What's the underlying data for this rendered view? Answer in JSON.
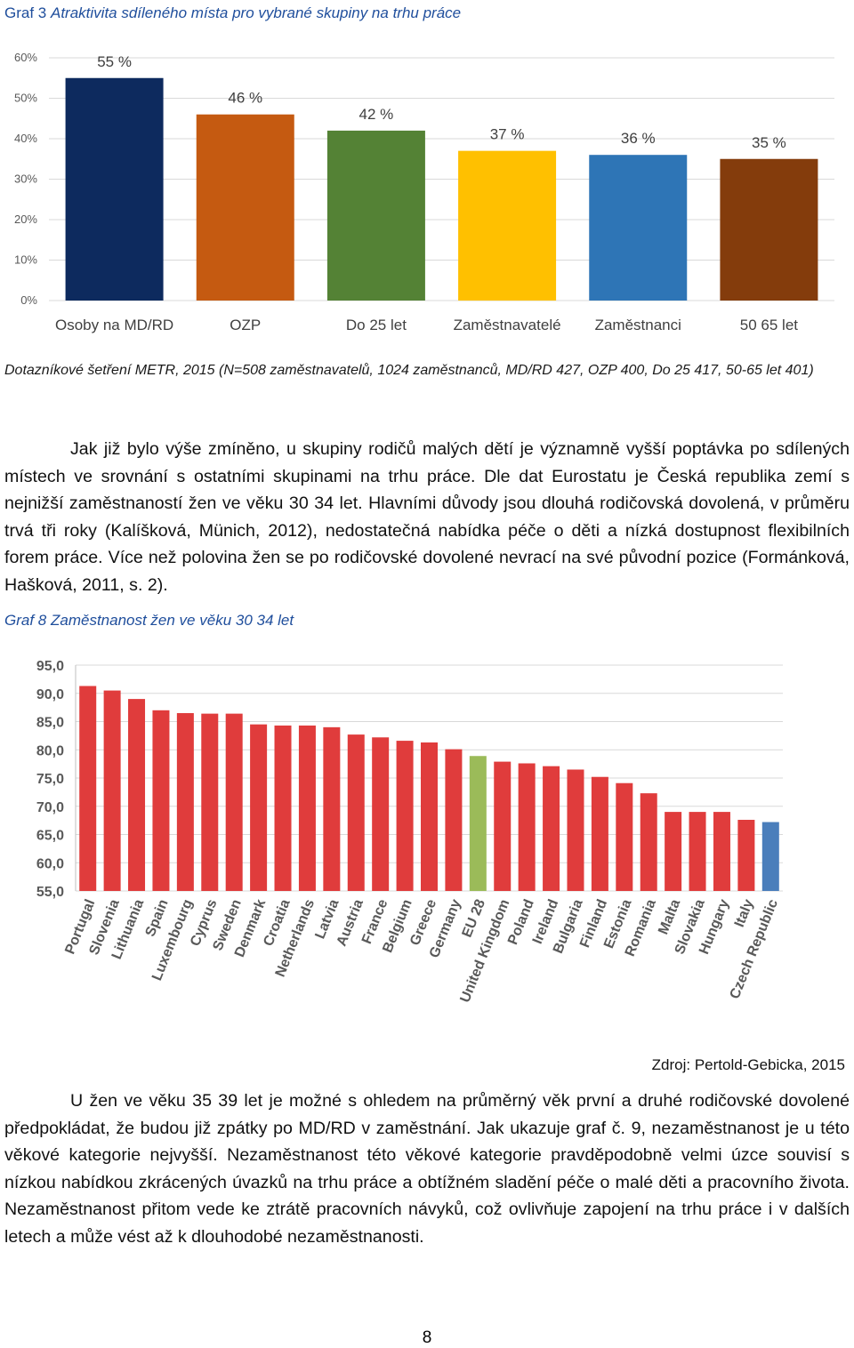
{
  "chart1": {
    "caption_prefix": "Graf 3",
    "caption_title": "Atraktivita sdíleného místa pro vybrané skupiny na trhu práce",
    "note": "Dotazníkové šetření METR, 2015 (N=508 zaměstnavatelů, 1024 zaměstnanců, MD/RD 427, OZP 400, Do 25 417, 50-65 let 401)"
  },
  "chart2": {
    "caption_prefix": "Graf 8",
    "caption_title": "Zaměstnanost žen ve věku 30",
    "caption_suffix": "34 let",
    "source": "Zdroj: Pertold-Gebicka, 2015"
  },
  "paragraph1": "Jak již bylo výše zmíněno, u skupiny rodičů malých dětí je významně vyšší poptávka po sdílených místech ve srovnání s ostatními skupinami na trhu práce. Dle dat Eurostatu je Česká republika zemí s nejnižší zaměstnaností žen ve věku 30 34 let. Hlavními důvody jsou dlouhá rodičovská dovolená, v průměru trvá tři roky (Kalíšková, Münich, 2012), nedostatečná nabídka péče o děti a nízká dostupnost flexibilních forem práce. Více než polovina žen se po rodičovské dovolené nevrací na své původní pozice (Formánková, Hašková, 2011, s. 2).",
  "paragraph2": "U žen ve věku 35 39 let je možné s ohledem na průměrný věk první a druhé rodičovské dovolené předpokládat, že budou již zpátky po MD/RD v zaměstnání. Jak ukazuje graf č. 9, nezaměstnanost je u této věkové kategorie nejvyšší. Nezaměstnanost této věkové kategorie pravděpodobně velmi úzce souvisí s nízkou nabídkou zkrácených úvazků na trhu práce a obtížném sladění péče o malé děti a pracovního života. Nezaměstnanost přitom vede ke ztrátě pracovních návyků, což ovlivňuje zapojení na trhu práce i v dalších letech a může vést až k dlouhodobé nezaměstnanosti.",
  "page_number": "8",
  "chart_data": [
    {
      "type": "bar",
      "categories": [
        "Osoby na MD/RD",
        "OZP",
        "Do 25 let",
        "Zaměstnavatelé",
        "Zaměstnanci",
        "50 65 let"
      ],
      "values": [
        55,
        46,
        42,
        37,
        36,
        35
      ],
      "data_labels": [
        "55 %",
        "46 %",
        "42 %",
        "37 %",
        "36 %",
        "35 %"
      ],
      "colors": [
        "#0d2a5e",
        "#c55a11",
        "#548235",
        "#ffc000",
        "#2e75b6",
        "#843c0c"
      ],
      "yticks": [
        "0%",
        "10%",
        "20%",
        "30%",
        "40%",
        "50%",
        "60%"
      ],
      "ylim": [
        0,
        60
      ],
      "grid": true
    },
    {
      "type": "bar",
      "categories": [
        "Portugal",
        "Slovenia",
        "Lithuania",
        "Spain",
        "Luxembourg",
        "Cyprus",
        "Sweden",
        "Denmark",
        "Croatia",
        "Netherlands",
        "Latvia",
        "Austria",
        "France",
        "Belgium",
        "Greece",
        "Germany",
        "EU 28",
        "United Kingdom",
        "Poland",
        "Ireland",
        "Bulgaria",
        "Finland",
        "Estonia",
        "Romania",
        "Malta",
        "Slovakia",
        "Hungary",
        "Italy",
        "Czech Republic"
      ],
      "values": [
        91.3,
        90.5,
        89.0,
        87.0,
        86.5,
        86.4,
        86.4,
        84.5,
        84.3,
        84.3,
        84.0,
        82.7,
        82.2,
        81.6,
        81.3,
        80.1,
        78.9,
        77.9,
        77.6,
        77.1,
        76.5,
        75.2,
        74.1,
        72.3,
        69.0,
        69.0,
        69.0,
        67.6,
        67.2
      ],
      "colors": {
        "default": "#e03c3c",
        "EU 28": "#9bbb59",
        "Czech Republic": "#4a7ebb"
      },
      "yticks": [
        "55,0",
        "60,0",
        "65,0",
        "70,0",
        "75,0",
        "80,0",
        "85,0",
        "90,0",
        "95,0"
      ],
      "ylim": [
        55,
        95
      ],
      "grid": true
    }
  ]
}
